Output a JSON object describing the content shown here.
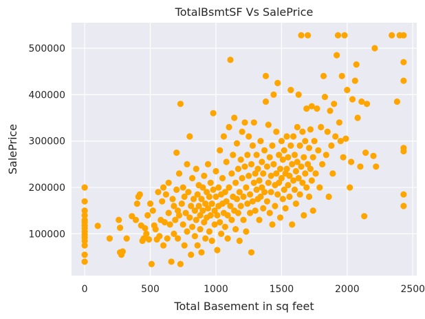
{
  "chart_data": {
    "type": "scatter",
    "title": "TotalBsmtSF Vs SalePrice",
    "xlabel": "Total Basement in sq feet",
    "ylabel": "SalePrice",
    "xlim": [
      -100,
      2530
    ],
    "ylim": [
      10000,
      555000
    ],
    "x_ticks": [
      0,
      500,
      1000,
      1500,
      2000,
      2500
    ],
    "y_ticks": [
      100000,
      200000,
      300000,
      400000,
      500000
    ],
    "x_tick_labels": [
      "0",
      "500",
      "1000",
      "1500",
      "2000",
      "2500"
    ],
    "y_tick_labels": [
      "100000",
      "200000",
      "300000",
      "400000",
      "500000"
    ],
    "grid": true,
    "colors": {
      "point": "#FFA500",
      "plot_bg": "#EAEAF2",
      "grid": "#FFFFFF"
    },
    "points": [
      [
        0,
        200000
      ],
      [
        0,
        170000
      ],
      [
        0,
        150000
      ],
      [
        0,
        140000
      ],
      [
        0,
        130000
      ],
      [
        0,
        125000
      ],
      [
        0,
        118000
      ],
      [
        0,
        112000
      ],
      [
        0,
        105000
      ],
      [
        0,
        98000
      ],
      [
        0,
        92000
      ],
      [
        0,
        85000
      ],
      [
        0,
        75000
      ],
      [
        0,
        55000
      ],
      [
        0,
        40000
      ],
      [
        100,
        117000
      ],
      [
        190,
        90000
      ],
      [
        260,
        130000
      ],
      [
        270,
        60000
      ],
      [
        270,
        113000
      ],
      [
        280,
        55000
      ],
      [
        290,
        62000
      ],
      [
        320,
        90000
      ],
      [
        360,
        138000
      ],
      [
        390,
        130000
      ],
      [
        400,
        165000
      ],
      [
        410,
        180000
      ],
      [
        420,
        185000
      ],
      [
        430,
        118000
      ],
      [
        440,
        85000
      ],
      [
        450,
        90000
      ],
      [
        460,
        112000
      ],
      [
        470,
        100000
      ],
      [
        480,
        140000
      ],
      [
        490,
        88000
      ],
      [
        500,
        165000
      ],
      [
        510,
        35000
      ],
      [
        520,
        150000
      ],
      [
        530,
        118000
      ],
      [
        540,
        110000
      ],
      [
        550,
        88000
      ],
      [
        560,
        190000
      ],
      [
        570,
        95000
      ],
      [
        580,
        130000
      ],
      [
        590,
        170000
      ],
      [
        600,
        200000
      ],
      [
        600,
        75000
      ],
      [
        610,
        125000
      ],
      [
        620,
        185000
      ],
      [
        630,
        90000
      ],
      [
        640,
        210000
      ],
      [
        640,
        145000
      ],
      [
        650,
        120000
      ],
      [
        660,
        40000
      ],
      [
        670,
        175000
      ],
      [
        680,
        160000
      ],
      [
        680,
        100000
      ],
      [
        690,
        130000
      ],
      [
        700,
        275000
      ],
      [
        700,
        195000
      ],
      [
        710,
        150000
      ],
      [
        710,
        90000
      ],
      [
        720,
        230000
      ],
      [
        720,
        140000
      ],
      [
        730,
        380000
      ],
      [
        730,
        35000
      ],
      [
        740,
        165000
      ],
      [
        750,
        120000
      ],
      [
        750,
        200000
      ],
      [
        760,
        180000
      ],
      [
        760,
        75000
      ],
      [
        770,
        145000
      ],
      [
        780,
        250000
      ],
      [
        780,
        105000
      ],
      [
        790,
        190000
      ],
      [
        800,
        310000
      ],
      [
        800,
        135000
      ],
      [
        810,
        160000
      ],
      [
        810,
        55000
      ],
      [
        820,
        220000
      ],
      [
        820,
        115000
      ],
      [
        830,
        175000
      ],
      [
        840,
        150000
      ],
      [
        840,
        95000
      ],
      [
        850,
        240000
      ],
      [
        850,
        130000
      ],
      [
        860,
        185000
      ],
      [
        860,
        75000
      ],
      [
        870,
        160000
      ],
      [
        870,
        205000
      ],
      [
        880,
        140000
      ],
      [
        880,
        110000
      ],
      [
        890,
        175000
      ],
      [
        890,
        60000
      ],
      [
        900,
        200000
      ],
      [
        900,
        150000
      ],
      [
        910,
        125000
      ],
      [
        910,
        225000
      ],
      [
        920,
        165000
      ],
      [
        920,
        90000
      ],
      [
        930,
        190000
      ],
      [
        930,
        135000
      ],
      [
        940,
        155000
      ],
      [
        940,
        250000
      ],
      [
        950,
        180000
      ],
      [
        950,
        105000
      ],
      [
        960,
        140000
      ],
      [
        960,
        210000
      ],
      [
        970,
        165000
      ],
      [
        970,
        85000
      ],
      [
        980,
        360000
      ],
      [
        980,
        195000
      ],
      [
        990,
        150000
      ],
      [
        990,
        120000
      ],
      [
        1000,
        180000
      ],
      [
        1000,
        235000
      ],
      [
        1010,
        140000
      ],
      [
        1010,
        65000
      ],
      [
        1020,
        200000
      ],
      [
        1020,
        160000
      ],
      [
        1030,
        125000
      ],
      [
        1030,
        280000
      ],
      [
        1040,
        185000
      ],
      [
        1040,
        100000
      ],
      [
        1050,
        165000
      ],
      [
        1050,
        220000
      ],
      [
        1060,
        145000
      ],
      [
        1060,
        310000
      ],
      [
        1070,
        190000
      ],
      [
        1070,
        115000
      ],
      [
        1080,
        255000
      ],
      [
        1080,
        170000
      ],
      [
        1090,
        140000
      ],
      [
        1090,
        90000
      ],
      [
        1100,
        200000
      ],
      [
        1100,
        330000
      ],
      [
        1110,
        160000
      ],
      [
        1110,
        475000
      ],
      [
        1120,
        230000
      ],
      [
        1120,
        130000
      ],
      [
        1130,
        180000
      ],
      [
        1130,
        270000
      ],
      [
        1140,
        150000
      ],
      [
        1140,
        350000
      ],
      [
        1150,
        210000
      ],
      [
        1150,
        110000
      ],
      [
        1160,
        175000
      ],
      [
        1160,
        295000
      ],
      [
        1170,
        145000
      ],
      [
        1170,
        240000
      ],
      [
        1180,
        190000
      ],
      [
        1180,
        85000
      ],
      [
        1190,
        260000
      ],
      [
        1190,
        160000
      ],
      [
        1200,
        220000
      ],
      [
        1200,
        320000
      ],
      [
        1210,
        180000
      ],
      [
        1210,
        130000
      ],
      [
        1220,
        245000
      ],
      [
        1220,
        340000
      ],
      [
        1230,
        200000
      ],
      [
        1230,
        105000
      ],
      [
        1240,
        270000
      ],
      [
        1240,
        165000
      ],
      [
        1250,
        225000
      ],
      [
        1250,
        310000
      ],
      [
        1260,
        185000
      ],
      [
        1260,
        145000
      ],
      [
        1270,
        60000
      ],
      [
        1270,
        250000
      ],
      [
        1280,
        290000
      ],
      [
        1280,
        170000
      ],
      [
        1290,
        210000
      ],
      [
        1290,
        340000
      ],
      [
        1300,
        230000
      ],
      [
        1300,
        150000
      ],
      [
        1310,
        195000
      ],
      [
        1310,
        270000
      ],
      [
        1320,
        175000
      ],
      [
        1320,
        240000
      ],
      [
        1330,
        215000
      ],
      [
        1330,
        130000
      ],
      [
        1340,
        300000
      ],
      [
        1340,
        180000
      ],
      [
        1350,
        255000
      ],
      [
        1350,
        200000
      ],
      [
        1360,
        155000
      ],
      [
        1360,
        230000
      ],
      [
        1370,
        280000
      ],
      [
        1370,
        190000
      ],
      [
        1380,
        440000
      ],
      [
        1380,
        385000
      ],
      [
        1390,
        170000
      ],
      [
        1390,
        245000
      ],
      [
        1400,
        210000
      ],
      [
        1400,
        335000
      ],
      [
        1410,
        265000
      ],
      [
        1410,
        145000
      ],
      [
        1420,
        225000
      ],
      [
        1420,
        190000
      ],
      [
        1430,
        120000
      ],
      [
        1430,
        290000
      ],
      [
        1440,
        250000
      ],
      [
        1440,
        400000
      ],
      [
        1450,
        205000
      ],
      [
        1450,
        160000
      ],
      [
        1460,
        230000
      ],
      [
        1460,
        320000
      ],
      [
        1470,
        425000
      ],
      [
        1470,
        185000
      ],
      [
        1480,
        270000
      ],
      [
        1480,
        210000
      ],
      [
        1490,
        240000
      ],
      [
        1490,
        135000
      ],
      [
        1500,
        300000
      ],
      [
        1500,
        220000
      ],
      [
        1510,
        260000
      ],
      [
        1510,
        175000
      ],
      [
        1520,
        195000
      ],
      [
        1520,
        280000
      ],
      [
        1530,
        230000
      ],
      [
        1530,
        155000
      ],
      [
        1540,
        310000
      ],
      [
        1540,
        240000
      ],
      [
        1550,
        205000
      ],
      [
        1550,
        265000
      ],
      [
        1560,
        180000
      ],
      [
        1560,
        225000
      ],
      [
        1570,
        410000
      ],
      [
        1570,
        290000
      ],
      [
        1580,
        250000
      ],
      [
        1580,
        120000
      ],
      [
        1590,
        215000
      ],
      [
        1590,
        310000
      ],
      [
        1600,
        195000
      ],
      [
        1600,
        270000
      ],
      [
        1610,
        235000
      ],
      [
        1610,
        165000
      ],
      [
        1620,
        330000
      ],
      [
        1620,
        255000
      ],
      [
        1630,
        220000
      ],
      [
        1630,
        400000
      ],
      [
        1640,
        290000
      ],
      [
        1640,
        185000
      ],
      [
        1650,
        245000
      ],
      [
        1650,
        528000
      ],
      [
        1660,
        320000
      ],
      [
        1660,
        210000
      ],
      [
        1670,
        265000
      ],
      [
        1670,
        140000
      ],
      [
        1680,
        230000
      ],
      [
        1680,
        300000
      ],
      [
        1690,
        370000
      ],
      [
        1690,
        200000
      ],
      [
        1700,
        528000
      ],
      [
        1700,
        250000
      ],
      [
        1710,
        285000
      ],
      [
        1710,
        180000
      ],
      [
        1720,
        325000
      ],
      [
        1720,
        240000
      ],
      [
        1730,
        375000
      ],
      [
        1730,
        215000
      ],
      [
        1740,
        265000
      ],
      [
        1740,
        150000
      ],
      [
        1750,
        300000
      ],
      [
        1760,
        230000
      ],
      [
        1770,
        370000
      ],
      [
        1780,
        280000
      ],
      [
        1790,
        200000
      ],
      [
        1800,
        330000
      ],
      [
        1810,
        250000
      ],
      [
        1820,
        440000
      ],
      [
        1830,
        395000
      ],
      [
        1840,
        270000
      ],
      [
        1850,
        320000
      ],
      [
        1860,
        180000
      ],
      [
        1870,
        365000
      ],
      [
        1880,
        290000
      ],
      [
        1890,
        230000
      ],
      [
        1900,
        380000
      ],
      [
        1910,
        310000
      ],
      [
        1920,
        485000
      ],
      [
        1930,
        528000
      ],
      [
        1940,
        340000
      ],
      [
        1950,
        300000
      ],
      [
        1960,
        440000
      ],
      [
        1970,
        265000
      ],
      [
        1980,
        528000
      ],
      [
        1990,
        305000
      ],
      [
        2000,
        410000
      ],
      [
        2020,
        200000
      ],
      [
        2030,
        255000
      ],
      [
        2040,
        390000
      ],
      [
        2060,
        430000
      ],
      [
        2070,
        465000
      ],
      [
        2080,
        350000
      ],
      [
        2100,
        245000
      ],
      [
        2110,
        385000
      ],
      [
        2130,
        138000
      ],
      [
        2140,
        275000
      ],
      [
        2150,
        380000
      ],
      [
        2200,
        268000
      ],
      [
        2210,
        500000
      ],
      [
        2220,
        245000
      ],
      [
        2340,
        528000
      ],
      [
        2380,
        385000
      ],
      [
        2400,
        528000
      ],
      [
        2430,
        528000
      ],
      [
        2430,
        470000
      ],
      [
        2430,
        430000
      ],
      [
        2430,
        285000
      ],
      [
        2430,
        278000
      ],
      [
        2430,
        185000
      ],
      [
        2430,
        160000
      ]
    ]
  }
}
